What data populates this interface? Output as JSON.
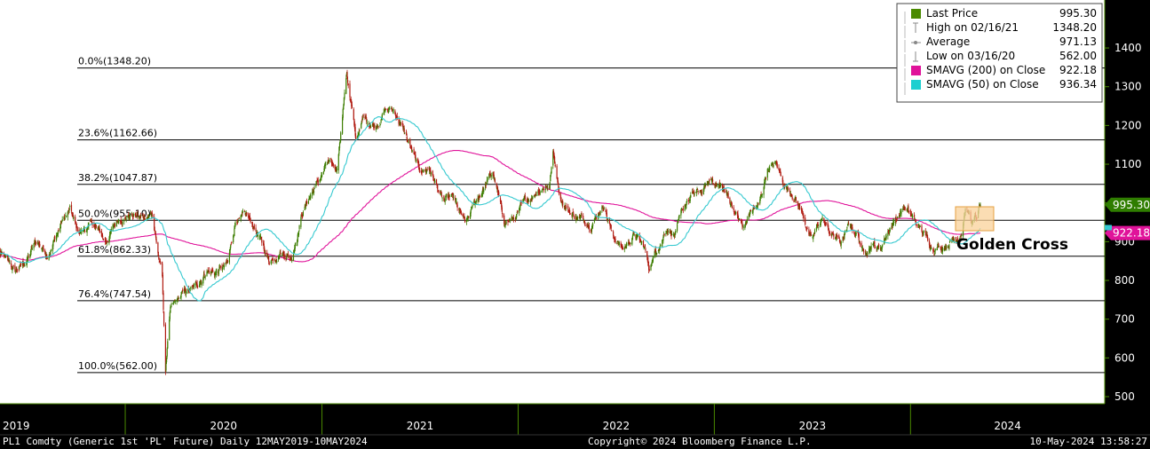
{
  "chart_data": {
    "type": "candlestick",
    "x": [
      "2019",
      "2020",
      "2021",
      "2022",
      "2023",
      "2024"
    ],
    "ylim": [
      480,
      1420
    ],
    "yticks": [
      "1400",
      "1300",
      "1200",
      "1100",
      "1000",
      "900",
      "800",
      "700",
      "600",
      "500"
    ],
    "fib_levels": [
      {
        "label": "0.0%(1348.20)",
        "value": 1348.2
      },
      {
        "label": "23.6%(1162.66)",
        "value": 1162.66
      },
      {
        "label": "38.2%(1047.87)",
        "value": 1047.87
      },
      {
        "label": "50.0%(955.10)",
        "value": 955.1
      },
      {
        "label": "61.8%(862.33)",
        "value": 862.33
      },
      {
        "label": "76.4%(747.54)",
        "value": 747.54
      },
      {
        "label": "100.0%(562.00)",
        "value": 562.0
      }
    ],
    "legend": [
      {
        "label": "Last Price",
        "value": "995.30",
        "color": "#4a8a00",
        "marker": "square"
      },
      {
        "label": "High on 02/16/21",
        "value": "1348.20",
        "color": "#888888",
        "marker": "high"
      },
      {
        "label": "Average",
        "value": "971.13",
        "color": "#888888",
        "marker": "avg"
      },
      {
        "label": "Low on 03/16/20",
        "value": "562.00",
        "color": "#888888",
        "marker": "low"
      },
      {
        "label": "SMAVG (200)  on Close",
        "value": "922.18",
        "color": "#e0139a",
        "marker": "square"
      },
      {
        "label": "SMAVG (50)  on Close",
        "value": "936.34",
        "color": "#1ecfd0",
        "marker": "square"
      }
    ],
    "last_price_tag": "995.30",
    "sma200_tag": "922.18",
    "annotation": "Golden Cross",
    "colors": {
      "up": "#3c7d00",
      "down": "#b01a10",
      "sma200": "#e0139a",
      "sma50": "#35c9d0"
    },
    "price_anchors": [
      [
        "2019-05-13",
        870
      ],
      [
        "2019-06-10",
        820
      ],
      [
        "2019-07-01",
        850
      ],
      [
        "2019-07-20",
        900
      ],
      [
        "2019-08-10",
        870
      ],
      [
        "2019-09-05",
        950
      ],
      [
        "2019-09-20",
        980
      ],
      [
        "2019-10-05",
        920
      ],
      [
        "2019-11-01",
        945
      ],
      [
        "2019-11-25",
        900
      ],
      [
        "2019-12-20",
        960
      ],
      [
        "2020-01-10",
        970
      ],
      [
        "2020-02-01",
        960
      ],
      [
        "2020-02-20",
        975
      ],
      [
        "2020-03-02",
        860
      ],
      [
        "2020-03-09",
        840
      ],
      [
        "2020-03-16",
        570
      ],
      [
        "2020-03-25",
        720
      ],
      [
        "2020-04-15",
        760
      ],
      [
        "2020-05-10",
        780
      ],
      [
        "2020-06-01",
        830
      ],
      [
        "2020-06-15",
        820
      ],
      [
        "2020-07-10",
        840
      ],
      [
        "2020-07-25",
        960
      ],
      [
        "2020-08-15",
        960
      ],
      [
        "2020-09-01",
        925
      ],
      [
        "2020-09-25",
        850
      ],
      [
        "2020-10-15",
        880
      ],
      [
        "2020-11-05",
        860
      ],
      [
        "2020-11-25",
        975
      ],
      [
        "2020-12-10",
        1020
      ],
      [
        "2020-12-28",
        1060
      ],
      [
        "2021-01-10",
        1100
      ],
      [
        "2021-01-28",
        1080
      ],
      [
        "2021-02-16",
        1340
      ],
      [
        "2021-03-05",
        1160
      ],
      [
        "2021-03-20",
        1220
      ],
      [
        "2021-04-10",
        1200
      ],
      [
        "2021-04-28",
        1240
      ],
      [
        "2021-05-15",
        1240
      ],
      [
        "2021-06-01",
        1190
      ],
      [
        "2021-06-15",
        1140
      ],
      [
        "2021-07-01",
        1080
      ],
      [
        "2021-07-20",
        1090
      ],
      [
        "2021-08-15",
        1000
      ],
      [
        "2021-09-01",
        1010
      ],
      [
        "2021-09-25",
        940
      ],
      [
        "2021-10-10",
        990
      ],
      [
        "2021-10-25",
        1030
      ],
      [
        "2021-11-15",
        1080
      ],
      [
        "2021-12-05",
        950
      ],
      [
        "2021-12-25",
        960
      ],
      [
        "2022-01-15",
        1000
      ],
      [
        "2022-02-10",
        1040
      ],
      [
        "2022-02-28",
        1050
      ],
      [
        "2022-03-07",
        1130
      ],
      [
        "2022-03-20",
        1020
      ],
      [
        "2022-04-05",
        980
      ],
      [
        "2022-04-25",
        960
      ],
      [
        "2022-05-15",
        950
      ],
      [
        "2022-06-10",
        1000
      ],
      [
        "2022-06-25",
        920
      ],
      [
        "2022-07-15",
        880
      ],
      [
        "2022-08-05",
        920
      ],
      [
        "2022-08-25",
        880
      ],
      [
        "2022-09-01",
        830
      ],
      [
        "2022-09-15",
        880
      ],
      [
        "2022-10-05",
        940
      ],
      [
        "2022-10-20",
        920
      ],
      [
        "2022-11-10",
        1000
      ],
      [
        "2022-11-25",
        1020
      ],
      [
        "2022-12-10",
        1030
      ],
      [
        "2022-12-28",
        1060
      ],
      [
        "2023-01-15",
        1040
      ],
      [
        "2023-02-01",
        1000
      ],
      [
        "2023-02-25",
        930
      ],
      [
        "2023-03-10",
        980
      ],
      [
        "2023-03-25",
        990
      ],
      [
        "2023-04-10",
        1090
      ],
      [
        "2023-04-25",
        1100
      ],
      [
        "2023-05-10",
        1050
      ],
      [
        "2023-05-30",
        1020
      ],
      [
        "2023-06-15",
        970
      ],
      [
        "2023-07-01",
        900
      ],
      [
        "2023-07-20",
        960
      ],
      [
        "2023-08-05",
        920
      ],
      [
        "2023-08-25",
        900
      ],
      [
        "2023-09-10",
        940
      ],
      [
        "2023-09-25",
        920
      ],
      [
        "2023-10-05",
        870
      ],
      [
        "2023-10-20",
        900
      ],
      [
        "2023-11-05",
        880
      ],
      [
        "2023-11-20",
        930
      ],
      [
        "2023-12-05",
        960
      ],
      [
        "2023-12-20",
        990
      ],
      [
        "2024-01-05",
        960
      ],
      [
        "2024-01-25",
        920
      ],
      [
        "2024-02-10",
        890
      ],
      [
        "2024-02-28",
        890
      ],
      [
        "2024-03-10",
        900
      ],
      [
        "2024-03-25",
        910
      ],
      [
        "2024-04-05",
        930
      ],
      [
        "2024-04-12",
        990
      ],
      [
        "2024-04-25",
        950
      ],
      [
        "2024-05-03",
        960
      ],
      [
        "2024-05-10",
        995
      ]
    ]
  },
  "axis": {
    "years": [
      {
        "label": "2019",
        "date": "2019-05-13"
      },
      {
        "label": "2020",
        "date": "2020-01-01"
      },
      {
        "label": "2021",
        "date": "2021-01-01"
      },
      {
        "label": "2022",
        "date": "2022-01-01"
      },
      {
        "label": "2023",
        "date": "2023-01-01"
      },
      {
        "label": "2024",
        "date": "2024-01-01"
      }
    ],
    "date_start": "2019-05-13",
    "date_end": "2024-05-10"
  },
  "footer": {
    "left": "PL1 Comdty (Generic 1st 'PL' Future)  Daily 12MAY2019-10MAY2024",
    "center": "Copyright© 2024 Bloomberg Finance L.P.",
    "right": "10-May-2024 13:58:27"
  }
}
